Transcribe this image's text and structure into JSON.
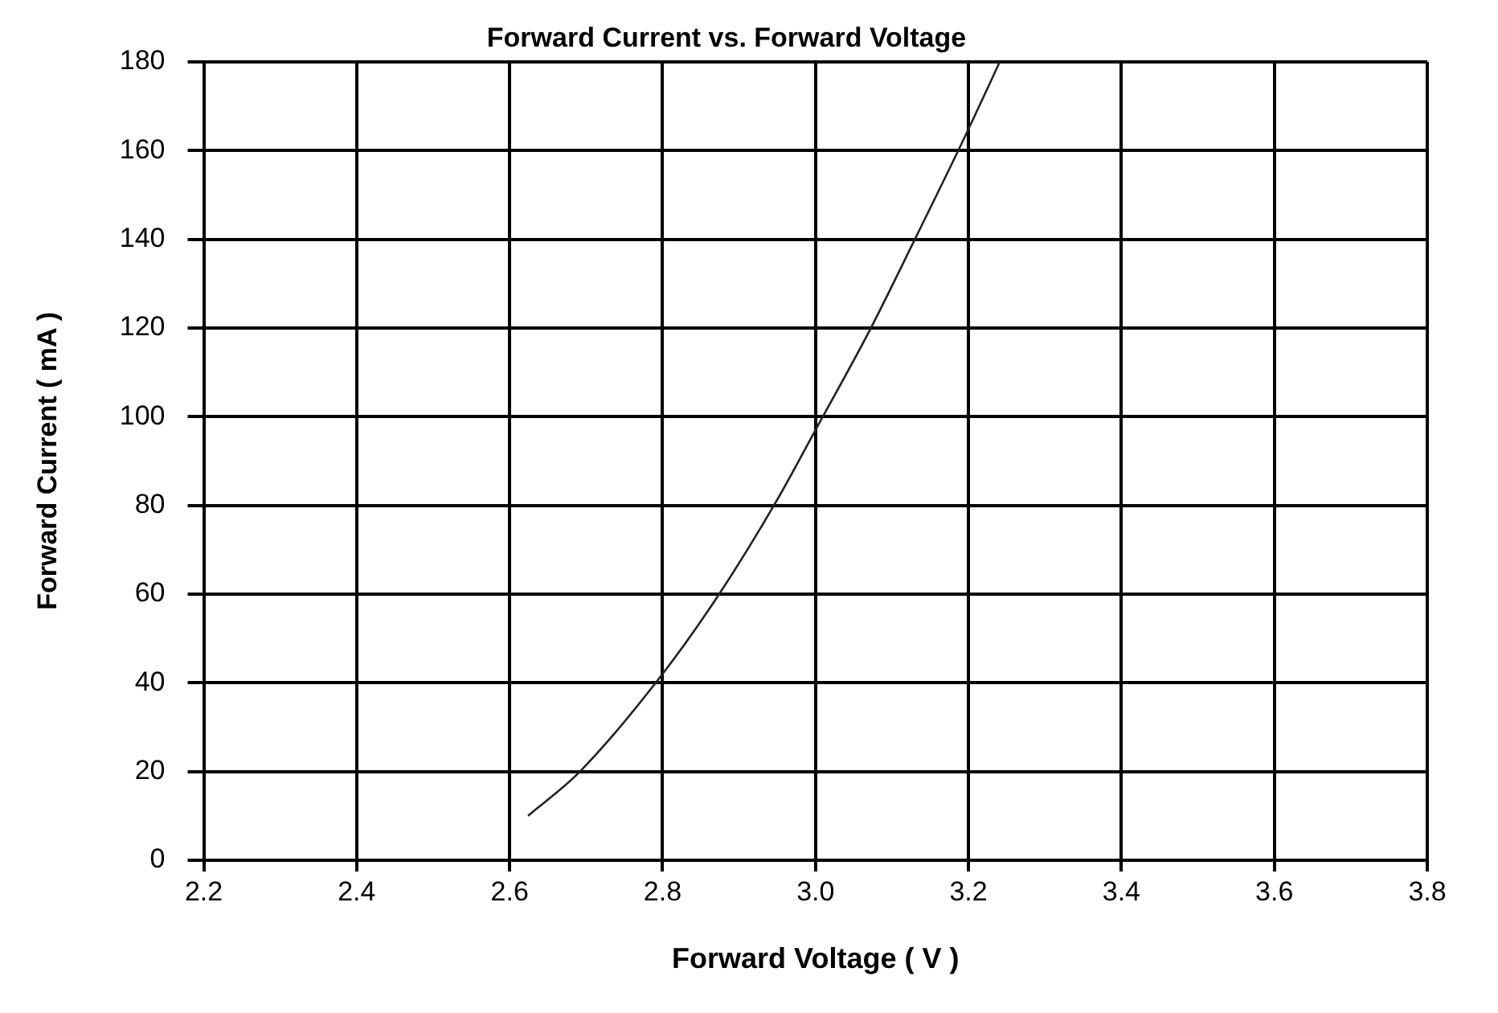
{
  "chart_data": {
    "type": "line",
    "title": "Forward Current vs. Forward Voltage",
    "xlabel": "Forward Voltage ( V )",
    "ylabel": "Forward Current ( mA )",
    "x": [
      2.624,
      2.692,
      2.8,
      2.874,
      2.949,
      3.0,
      3.071,
      3.132,
      3.197,
      3.241
    ],
    "series": [
      {
        "color": "#222222",
        "values": [
          10,
          20,
          42,
          60,
          81,
          97,
          119.5,
          140.7,
          163.7,
          180
        ]
      }
    ],
    "xlim": [
      2.2,
      3.8
    ],
    "xticks": [
      {
        "value": 2.2,
        "label": "2.2"
      },
      {
        "value": 2.4,
        "label": "2.4"
      },
      {
        "value": 2.6,
        "label": "2.6"
      },
      {
        "value": 2.8,
        "label": "2.8"
      },
      {
        "value": 3.0,
        "label": "3.0"
      },
      {
        "value": 3.2,
        "label": "3.2"
      },
      {
        "value": 3.4,
        "label": "3.4"
      },
      {
        "value": 3.6,
        "label": "3.6"
      },
      {
        "value": 3.8,
        "label": "3.8"
      }
    ],
    "ylim": [
      0,
      180
    ],
    "yticks": [
      0,
      20,
      40,
      60,
      80,
      100,
      120,
      140,
      160,
      180
    ],
    "grid": true,
    "legend": false,
    "marker": "none",
    "line_style": "solid"
  }
}
